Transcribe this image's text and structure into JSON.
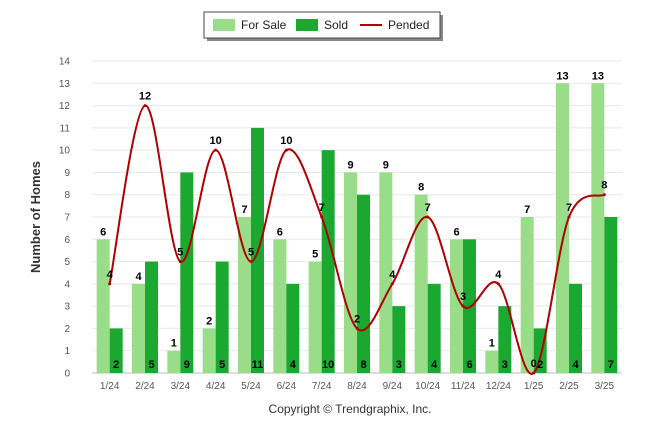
{
  "chart_data": {
    "type": "bar",
    "categories": [
      "1/24",
      "2/24",
      "3/24",
      "4/24",
      "5/24",
      "6/24",
      "7/24",
      "8/24",
      "9/24",
      "10/24",
      "11/24",
      "12/24",
      "1/25",
      "2/25",
      "3/25"
    ],
    "series": [
      {
        "name": "For Sale",
        "type": "bar",
        "color": "#99dd88",
        "values": [
          6,
          4,
          1,
          2,
          7,
          6,
          5,
          9,
          9,
          8,
          6,
          1,
          7,
          13,
          13
        ]
      },
      {
        "name": "Sold",
        "type": "bar",
        "color": "#1aa830",
        "values": [
          2,
          5,
          9,
          5,
          11,
          4,
          10,
          8,
          3,
          4,
          6,
          3,
          2,
          4,
          7
        ]
      },
      {
        "name": "Pended",
        "type": "line",
        "color": "#b00000",
        "values": [
          4,
          12,
          5,
          10,
          5,
          10,
          7,
          2,
          4,
          7,
          3,
          4,
          0,
          7,
          8
        ]
      }
    ],
    "ylabel": "Number of Homes",
    "xlabel": "",
    "ylim": [
      0,
      14
    ],
    "yticks": [
      0,
      1,
      2,
      3,
      4,
      5,
      6,
      7,
      8,
      9,
      10,
      11,
      12,
      13,
      14
    ],
    "grid": true,
    "legend_position": "top-center"
  },
  "footer": {
    "copyright": "Copyright © Trendgraphix, Inc."
  }
}
